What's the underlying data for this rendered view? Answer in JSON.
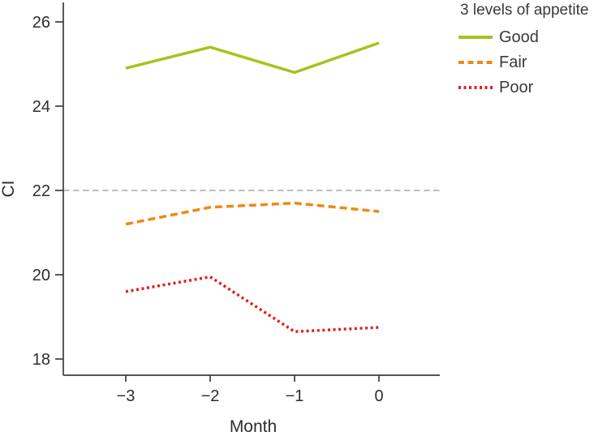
{
  "chart_data": {
    "type": "line",
    "x": [
      -3,
      -2,
      -1,
      0
    ],
    "xlabel": "Month",
    "ylabel": "CI",
    "xticks": [
      -3,
      -2,
      -1,
      0
    ],
    "yticks": [
      18,
      20,
      22,
      24,
      26
    ],
    "xlim": [
      -3.75,
      0.75
    ],
    "ylim": [
      17.6,
      26.5
    ],
    "grid": false,
    "reference_line": {
      "y": 22,
      "style": "dashed",
      "color": "#a8a8a8"
    },
    "legend": {
      "title": "3 levels of appetite",
      "position": "top-right"
    },
    "series": [
      {
        "name": "Good",
        "style": "solid",
        "color": "#a6c31e",
        "values": [
          24.9,
          25.4,
          24.8,
          25.5
        ]
      },
      {
        "name": "Fair",
        "style": "dashed",
        "color": "#ef8817",
        "values": [
          21.2,
          21.6,
          21.7,
          21.5
        ]
      },
      {
        "name": "Poor",
        "style": "dotted",
        "color": "#e02020",
        "values": [
          19.6,
          19.95,
          18.65,
          18.75
        ]
      }
    ]
  },
  "colors": {
    "axis": "#3d3d3d",
    "tick_text": "#2d2d2d",
    "legend_text": "#3a3a3a",
    "background": "#ffffff"
  }
}
